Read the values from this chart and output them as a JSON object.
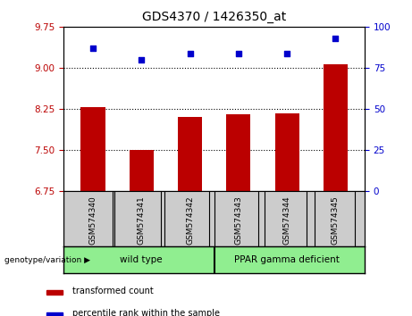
{
  "title": "GDS4370 / 1426350_at",
  "samples": [
    "GSM574340",
    "GSM574341",
    "GSM574342",
    "GSM574343",
    "GSM574344",
    "GSM574345"
  ],
  "bar_values": [
    8.28,
    7.5,
    8.1,
    8.15,
    8.17,
    9.06
  ],
  "dot_values": [
    87,
    80,
    84,
    84,
    84,
    93
  ],
  "ylim_left": [
    6.75,
    9.75
  ],
  "ylim_right": [
    0,
    100
  ],
  "yticks_left": [
    6.75,
    7.5,
    8.25,
    9.0,
    9.75
  ],
  "yticks_right": [
    0,
    25,
    50,
    75,
    100
  ],
  "hlines": [
    9.0,
    8.25,
    7.5
  ],
  "bar_color": "#bb0000",
  "dot_color": "#0000cc",
  "bar_width": 0.5,
  "legend_items": [
    {
      "label": "transformed count",
      "color": "#bb0000"
    },
    {
      "label": "percentile rank within the sample",
      "color": "#0000cc"
    }
  ],
  "plot_bg_color": "#ffffff",
  "tick_label_area_color": "#cccccc",
  "group_area_color": "#90ee90",
  "figsize": [
    4.61,
    3.54
  ],
  "dpi": 100
}
